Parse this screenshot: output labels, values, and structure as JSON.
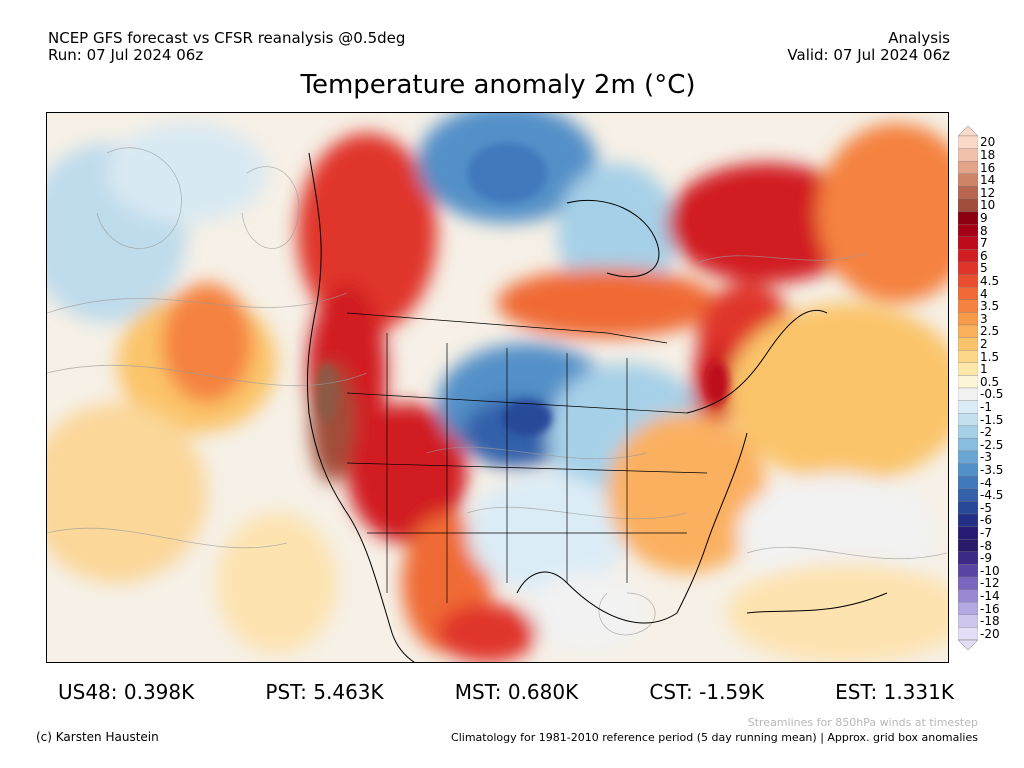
{
  "header": {
    "line1": "NCEP GFS forecast vs CFSR reanalysis @0.5deg",
    "line2": "Run: 07 Jul 2024 06z",
    "right1": "Analysis",
    "right2": "Valid: 07 Jul 2024 06z"
  },
  "title": "Temperature anomaly 2m (°C)",
  "colorbar": {
    "labels": [
      "20",
      "18",
      "16",
      "14",
      "12",
      "10",
      "9",
      "8",
      "7",
      "6",
      "5",
      "4.5",
      "4",
      "3.5",
      "3",
      "2.5",
      "2",
      "1.5",
      "1",
      "0.5",
      "-0.5",
      "-1",
      "-1.5",
      "-2",
      "-2.5",
      "-3",
      "-3.5",
      "-4",
      "-4.5",
      "-5",
      "-6",
      "-7",
      "-8",
      "-9",
      "-10",
      "-12",
      "-14",
      "-16",
      "-18",
      "-20"
    ],
    "colors": [
      "#fbd9c9",
      "#f2c1ab",
      "#e3a48a",
      "#cf8568",
      "#b96650",
      "#a04d3a",
      "#8c0012",
      "#a50016",
      "#be0a1a",
      "#d11e22",
      "#e0342a",
      "#e94e2e",
      "#f06a36",
      "#f5823f",
      "#f89a4a",
      "#fab05a",
      "#fbc46b",
      "#fcd788",
      "#fde8ab",
      "#fdf6d6",
      "#f2f2f2",
      "#dcecf6",
      "#c4e0f0",
      "#a6d0e8",
      "#88bddf",
      "#6aa7d4",
      "#5290c8",
      "#3f78bb",
      "#3261aa",
      "#28489a",
      "#232f86",
      "#261c74",
      "#2b1a6c",
      "#3d2a86",
      "#5a45a4",
      "#7a66bf",
      "#9a88d3",
      "#b6a8e2",
      "#cfc6ee",
      "#e4ddf7"
    ]
  },
  "stats": [
    {
      "region": "US48",
      "value": "0.398K",
      "text": "US48: 0.398K"
    },
    {
      "region": "PST",
      "value": "5.463K",
      "text": "PST: 5.463K"
    },
    {
      "region": "MST",
      "value": "0.680K",
      "text": "MST: 0.680K"
    },
    {
      "region": "CST",
      "value": "-1.59K",
      "text": "CST: -1.59K"
    },
    {
      "region": "EST",
      "value": "1.331K",
      "text": "EST: 1.331K"
    }
  ],
  "footer": {
    "streamlines": "Streamlines for 850hPa winds at timestep",
    "copyright": "(c) Karsten Haustein",
    "climatology": "Climatology for 1981-2010 reference period (5 day running mean) | Approx. grid box anomalies"
  }
}
